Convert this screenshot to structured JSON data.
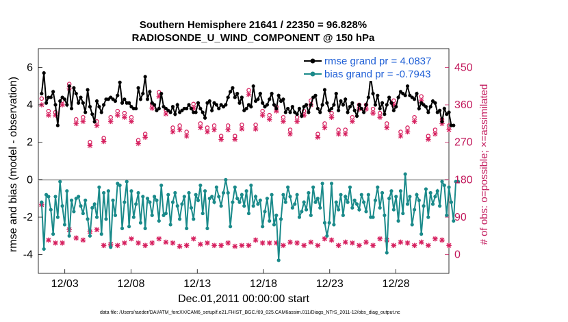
{
  "chart_data": {
    "type": "line",
    "title": "Southern Hemisphere 21641 / 22350 = 96.828%",
    "subtitle": "RADIOSONDE_U_WIND_COMPONENT @ 150 hPa",
    "xlabel": "Dec.01,2011 00:00:00 start",
    "ylabel": "rmse and bias (model - observation)",
    "ylabel_right": "# of obs: o=possible; ×=assimilated",
    "footnote": "data file: /Users/raeder/DAI/ATM_forcXX/CAM6_setup/f.e21.FHIST_BGC.f09_025.CAM6assim.011/Diags_NTrS_2011-12/obs_diag_output.nc",
    "x_tick_labels": [
      "12/03",
      "12/08",
      "12/13",
      "12/18",
      "12/23",
      "12/28"
    ],
    "x_tick_values": [
      3,
      8,
      13,
      18,
      23,
      28
    ],
    "xlim": [
      1,
      32
    ],
    "ylim": [
      -5,
      7
    ],
    "y_ticks": [
      "-4",
      "-2",
      "0",
      "2",
      "4",
      "6"
    ],
    "y2lim": [
      -45,
      495
    ],
    "y2_ticks": [
      "0",
      "90",
      "180",
      "270",
      "360",
      "450"
    ],
    "legend": [
      {
        "label": "rmse grand pr = 4.0837",
        "color": "#000000"
      },
      {
        "label": "bias grand pr = -0.7943",
        "color": "#1a8a8a"
      }
    ],
    "colors": {
      "rmse": "#000000",
      "bias": "#1a8a8a",
      "obs": "#d6205f",
      "zero": "#b0b0b0"
    },
    "series": [
      {
        "name": "rmse",
        "values": [
          4.6,
          5.7,
          4.1,
          4.4,
          4.4,
          4.7,
          4.0,
          2.9,
          4.2,
          4.4,
          4.3,
          4.0,
          5.0,
          3.8,
          4.9,
          4.6,
          4.1,
          4.4,
          4.1,
          3.6,
          4.8,
          3.9,
          3.5,
          3.1,
          4.2,
          3.9,
          3.6,
          4.0,
          4.3,
          4.3,
          4.4,
          4.3,
          4.2,
          4.5,
          5.2,
          4.1,
          4.3,
          4.1,
          4.1,
          3.9,
          3.8,
          3.8,
          4.9,
          4.3,
          4.6,
          5.5,
          4.3,
          4.7,
          4.1,
          4.0,
          3.7,
          3.8,
          4.6,
          3.9,
          3.8,
          3.7,
          3.6,
          3.9,
          3.5,
          4.0,
          3.6,
          3.7,
          3.8,
          3.8,
          4.0,
          3.8,
          3.6,
          3.6,
          4.1,
          3.8,
          3.6,
          3.3,
          4.1,
          4.2,
          3.7,
          4.1,
          4.0,
          3.8,
          4.0,
          3.9,
          4.0,
          4.4,
          4.7,
          4.9,
          4.4,
          4.6,
          4.1,
          4.4,
          3.7,
          3.8,
          4.0,
          3.9,
          5.0,
          4.2,
          4.3,
          4.6,
          4.1,
          3.9,
          4.0,
          4.3,
          4.6,
          4.0,
          3.8,
          4.5,
          4.2,
          4.3,
          3.6,
          3.8,
          3.6,
          3.9,
          3.6,
          3.5,
          3.8,
          3.4,
          3.9,
          4.0,
          3.6,
          4.0,
          4.4,
          4.5,
          3.8,
          3.6,
          4.0,
          4.8,
          4.1,
          3.7,
          3.8,
          4.0,
          4.6,
          3.7,
          4.2,
          4.0,
          4.3,
          3.6,
          3.9,
          4.1,
          3.7,
          3.4,
          4.0,
          3.8,
          3.6,
          4.0,
          4.4,
          5.5,
          4.6,
          4.0,
          4.5,
          3.8,
          4.1,
          3.5,
          4.0,
          4.4,
          4.1,
          3.7,
          3.9,
          4.4,
          4.7,
          4.6,
          4.5,
          5.0,
          4.5,
          4.4,
          4.3,
          4.6,
          3.8,
          4.1,
          4.0,
          3.9,
          3.6,
          3.9,
          4.2,
          4.1,
          3.6,
          3.7,
          3.1,
          3.8,
          3.5,
          3.6,
          2.9,
          2.9
        ]
      },
      {
        "name": "bias",
        "values": [
          -1.2,
          -3.7,
          -0.8,
          -0.9,
          -1.6,
          -2.9,
          -0.9,
          -2.0,
          -0.1,
          -1.4,
          -2.4,
          -0.6,
          -3.0,
          -1.1,
          -1.7,
          -1.0,
          -0.9,
          -1.4,
          -1.8,
          -1.1,
          -2.1,
          -3.0,
          -1.5,
          -1.3,
          -2.0,
          -0.4,
          -2.9,
          -0.7,
          -2.1,
          -0.6,
          -3.6,
          -1.1,
          -1.9,
          -0.2,
          -0.3,
          -2.6,
          -1.2,
          -0.1,
          -2.5,
          -0.6,
          -2.0,
          -1.3,
          -0.7,
          -2.3,
          -0.9,
          -2.6,
          -1.0,
          -1.2,
          -1.9,
          -0.9,
          -1.1,
          -2.2,
          -0.3,
          -1.9,
          -1.8,
          -0.8,
          -2.4,
          -1.2,
          -0.7,
          -1.4,
          -2.1,
          -1.3,
          -0.9,
          -2.6,
          -0.7,
          -1.5,
          -2.1,
          -0.8,
          -1.1,
          -0.3,
          -1.8,
          -0.6,
          -2.6,
          -1.0,
          -0.9,
          -1.2,
          -0.4,
          -0.9,
          -1.4,
          -0.7,
          0.0,
          -0.7,
          -2.5,
          -1.2,
          -0.4,
          -1.0,
          -1.2,
          -0.8,
          -1.4,
          -0.6,
          -1.8,
          -0.3,
          -1.4,
          -0.9,
          -1.3,
          -1.1,
          -2.5,
          -1.7,
          -1.0,
          -2.2,
          -0.8,
          -2.4,
          -1.9,
          -4.3,
          -2.1,
          -0.8,
          -1.2,
          -0.4,
          -0.9,
          -1.5,
          -1.3,
          -0.8,
          -2.0,
          -1.7,
          -1.2,
          -1.6,
          -0.7,
          -1.9,
          -0.4,
          -1.2,
          -1.0,
          -1.5,
          -0.2,
          -2.3,
          -3.0,
          -2.3,
          -0.2,
          -2.4,
          -1.2,
          -1.6,
          -0.8,
          -1.9,
          -0.9,
          -1.2,
          -0.4,
          -1.5,
          -1.1,
          -1.3,
          -1.6,
          -0.8,
          -1.2,
          -1.7,
          -0.8,
          -2.0,
          -2.0,
          -1.1,
          -0.4,
          -1.5,
          -0.7,
          -1.9,
          -3.9,
          -1.0,
          -0.6,
          -1.6,
          -0.9,
          -2.2,
          -0.6,
          -1.8,
          0.3,
          -1.3,
          -0.9,
          -2.4,
          -1.6,
          -0.8,
          -1.1,
          -2.9,
          -1.4,
          -0.5,
          -2.0,
          -0.7,
          -1.3,
          -0.9,
          -0.6,
          -1.4,
          -0.1,
          -0.3,
          -1.9,
          -0.4,
          -1.2,
          -2.2,
          -0.1,
          -0.1
        ]
      },
      {
        "name": "obs_possible",
        "values": [
          375,
          278,
          355,
          345,
          330,
          370,
          342,
          258,
          365,
          370,
          345,
          395,
          410,
          360,
          258,
          325,
          335,
          368,
          330,
          335,
          375,
          270,
          360,
          325,
          320,
          280,
          320,
          280,
          250,
          362,
          330,
          365,
          322,
          345,
          260,
          275,
          340,
          372,
          345,
          330,
          340,
          335,
          275,
          360,
          345,
          290,
          315,
          310,
          362,
          370,
          300,
          390,
          365,
          285,
          348,
          302,
          305,
          305,
          280,
          315,
          310,
          330,
          315,
          295,
          195,
          330,
          362,
          325,
          375,
          315,
          380,
          375,
          305,
          315,
          365,
          310,
          325,
          340,
          285,
          375,
          345,
          310,
          355,
          345,
          285,
          352,
          295,
          312,
          345,
          285,
          395,
          280,
          300,
          312,
          350,
          300,
          345,
          340,
          330,
          335,
          340,
          370,
          355,
          295,
          310,
          330,
          295,
          335,
          300,
          330,
          305,
          330,
          360,
          340,
          345,
          350,
          345,
          370,
          355,
          340,
          290,
          340,
          365,
          315,
          315,
          330,
          340,
          320,
          310,
          300,
          300,
          285,
          300,
          380,
          315,
          330,
          310,
          330,
          360,
          310,
          315,
          360,
          300,
          315,
          350,
          300,
          300,
          340,
          330,
          330,
          315,
          345,
          300,
          370,
          320,
          330,
          295,
          340,
          345,
          305,
          305,
          370,
          330,
          285,
          330,
          380,
          300,
          350,
          285,
          330,
          305,
          300,
          310,
          325,
          325,
          320,
          280,
          310,
          280,
          335
        ]
      },
      {
        "name": "obs_assimilated",
        "values": [
          360,
          270,
          345,
          335,
          320,
          360,
          335,
          250,
          355,
          360,
          335,
          385,
          400,
          350,
          250,
          315,
          325,
          358,
          320,
          325,
          365,
          262,
          350,
          315,
          310,
          272,
          310,
          272,
          242,
          352,
          320,
          355,
          312,
          335,
          252,
          267,
          330,
          362,
          335,
          320,
          330,
          325,
          267,
          350,
          335,
          282,
          305,
          300,
          352,
          360,
          290,
          380,
          355,
          277,
          338,
          292,
          295,
          295,
          272,
          305,
          300,
          320,
          305,
          285,
          190,
          320,
          352,
          315,
          365,
          305,
          370,
          365,
          295,
          305,
          355,
          300,
          315,
          330,
          277,
          365,
          335,
          300,
          345,
          335,
          277,
          342,
          285,
          302,
          335,
          277,
          385,
          272,
          290,
          302,
          340,
          290,
          335,
          330,
          320,
          325,
          330,
          360,
          345,
          285,
          300,
          320,
          285,
          325,
          290,
          320,
          295,
          320,
          350,
          330,
          335,
          340,
          335,
          360,
          345,
          330,
          282,
          330,
          355,
          305,
          305,
          320,
          330,
          310,
          300,
          290,
          290,
          277,
          290,
          370,
          305,
          320,
          300,
          320,
          350,
          300,
          305,
          350,
          290,
          305,
          340,
          290,
          290,
          330,
          320,
          320,
          305,
          335,
          290,
          360,
          310,
          320,
          285,
          330,
          335,
          295,
          295,
          360,
          320,
          277,
          320,
          370,
          290,
          340,
          277,
          320,
          295,
          290,
          300,
          315,
          315,
          310,
          272,
          300,
          272,
          325
        ]
      },
      {
        "name": "obs_possible_low",
        "values": [
          120,
          110,
          108,
          35,
          35,
          30,
          28,
          38,
          30,
          28,
          35,
          70,
          60,
          30,
          28,
          40,
          22,
          28,
          35,
          22,
          30,
          55,
          30,
          28,
          60,
          28,
          40,
          22,
          28,
          35,
          25,
          20,
          45,
          22,
          20,
          30,
          28,
          22,
          28,
          38,
          30,
          22,
          28,
          35,
          20,
          22,
          30,
          40,
          28,
          22,
          25,
          38,
          28,
          22,
          30,
          35,
          22,
          28,
          30,
          40,
          20,
          28,
          35,
          22,
          30,
          28,
          38,
          22,
          30,
          25,
          35,
          22,
          28,
          30,
          40,
          22,
          28,
          35,
          22,
          25,
          38,
          28,
          22,
          30,
          20,
          35,
          28,
          22,
          30,
          40,
          22,
          28,
          25,
          35,
          22,
          30,
          28,
          20,
          38,
          28,
          22,
          35,
          28,
          30,
          25,
          22,
          38,
          28,
          30,
          22,
          35,
          28,
          25,
          30,
          22,
          38,
          28,
          30,
          25,
          35,
          22,
          28,
          30,
          38,
          22,
          28,
          35,
          25,
          30,
          22,
          38,
          28,
          30,
          22,
          35,
          28,
          25,
          30,
          22,
          38,
          28,
          30,
          25,
          35,
          22,
          28,
          30,
          38,
          22,
          28,
          35,
          25,
          30,
          22,
          38,
          28,
          30,
          22,
          35,
          28,
          25,
          30,
          22,
          38,
          28,
          30,
          25,
          35,
          22,
          28,
          30,
          38,
          22,
          28,
          35,
          25,
          30,
          22,
          38,
          0
        ]
      }
    ],
    "n_points": 180
  }
}
